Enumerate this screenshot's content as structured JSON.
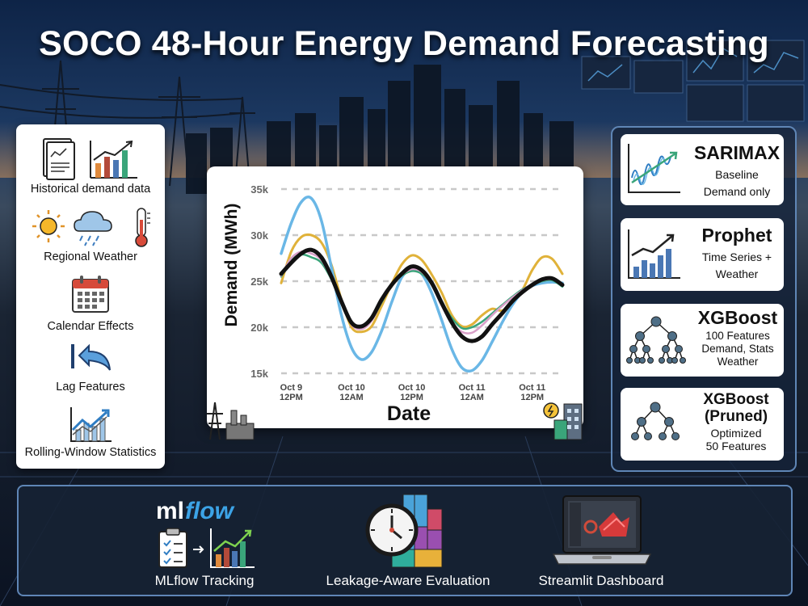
{
  "title": "SOCO 48-Hour Energy Demand Forecasting",
  "inputs": [
    {
      "label": "Historical demand data",
      "icons": [
        "document-icon",
        "bar-chart-icon"
      ]
    },
    {
      "label": "Regional Weather",
      "icons": [
        "sun-icon",
        "rain-cloud-icon",
        "thermometer-icon"
      ]
    },
    {
      "label": "Calendar Effects",
      "icons": [
        "calendar-icon"
      ]
    },
    {
      "label": "Lag Features",
      "icons": [
        "back-arrow-icon"
      ]
    },
    {
      "label": "Rolling-Window Statistics",
      "icons": [
        "trend-chart-icon"
      ]
    }
  ],
  "models": [
    {
      "name": "SARIMAX",
      "desc": [
        "Baseline",
        "Demand only"
      ],
      "icon": "wave-chart-icon"
    },
    {
      "name": "Prophet",
      "desc": [
        "Time Series +",
        "Weather"
      ],
      "icon": "bar-trend-icon"
    },
    {
      "name": "XGBoost",
      "desc": [
        "100 Features",
        "Demand, Stats",
        "Weather"
      ],
      "icon": "tree-icon"
    },
    {
      "name": "XGBoost\n(Pruned)",
      "desc": [
        "Optimized",
        "50 Features"
      ],
      "icon": "pruned-tree-icon"
    }
  ],
  "bottom": {
    "mlflow_logo": "mlflow",
    "items": [
      {
        "label": "MLflow Tracking",
        "icon": "clipboard-chart-icon"
      },
      {
        "label": "Leakage-Aware Evaluation",
        "icon": "clock-blocks-icon"
      },
      {
        "label": "Streamlit Dashboard",
        "icon": "laptop-icon"
      }
    ]
  },
  "colors": {
    "actual": "#111111",
    "sarimax": "#6ab7e6",
    "prophet": "#e0b23a",
    "xgboost": "#3aa57a",
    "xgboost_pruned": "#d9a0c9"
  },
  "chart_data": {
    "type": "line",
    "xlabel": "Date",
    "ylabel": "Demand (MWh)",
    "ylim": [
      15000,
      35000
    ],
    "yticks": [
      "15k",
      "20k",
      "25k",
      "30k",
      "35k"
    ],
    "ytick_values": [
      15000,
      20000,
      25000,
      30000,
      35000
    ],
    "xticks": [
      {
        "hour": 0,
        "label": [
          "Oct 9",
          "12PM"
        ]
      },
      {
        "hour": 12,
        "label": [
          "Oct 10",
          "12AM"
        ]
      },
      {
        "hour": 24,
        "label": [
          "Oct 10",
          "12PM"
        ]
      },
      {
        "hour": 36,
        "label": [
          "Oct 11",
          "12AM"
        ]
      },
      {
        "hour": 48,
        "label": [
          "Oct 11",
          "12PM"
        ]
      }
    ],
    "x_hours": [
      -2,
      0,
      2,
      4,
      6,
      8,
      10,
      12,
      14,
      16,
      18,
      20,
      22,
      24,
      26,
      28,
      30,
      32,
      34,
      36,
      38,
      40,
      42,
      44,
      46,
      48,
      50,
      52,
      54
    ],
    "series": [
      {
        "key": "actual",
        "width": 5,
        "values": [
          25800,
          27000,
          28000,
          28400,
          27600,
          25500,
          22800,
          20500,
          20100,
          21000,
          23000,
          24600,
          25800,
          26600,
          26200,
          24800,
          22600,
          20500,
          19000,
          18500,
          19000,
          20300,
          21500,
          22800,
          23800,
          24600,
          25200,
          25300,
          24600
        ]
      },
      {
        "key": "prophet",
        "width": 3,
        "values": [
          24800,
          28200,
          29800,
          30000,
          29200,
          26800,
          23000,
          20000,
          19500,
          20100,
          22300,
          24700,
          26800,
          27800,
          27300,
          25700,
          23700,
          21300,
          20100,
          20300,
          21300,
          22000,
          21800,
          22600,
          24000,
          26200,
          27600,
          27400,
          25800
        ]
      },
      {
        "key": "sarimax",
        "width": 3.5,
        "values": [
          28000,
          31300,
          33600,
          34000,
          31600,
          26500,
          21300,
          17800,
          16500,
          17300,
          19600,
          22700,
          25400,
          26300,
          25800,
          23700,
          20700,
          17600,
          15600,
          15300,
          16400,
          18400,
          20500,
          22400,
          23800,
          24500,
          24800,
          24900,
          24800
        ]
      },
      {
        "key": "xgboost",
        "width": 2.5,
        "values": [
          25500,
          27300,
          27900,
          27600,
          27000,
          25200,
          22800,
          20600,
          20000,
          20800,
          22700,
          24600,
          25600,
          26100,
          25800,
          24700,
          22700,
          21000,
          19900,
          20000,
          20600,
          21500,
          22400,
          23300,
          24100,
          24600,
          25000,
          25100,
          24400
        ]
      },
      {
        "key": "xgboost_pruned",
        "width": 2.5,
        "values": [
          25600,
          27500,
          28200,
          28000,
          27300,
          25300,
          22700,
          20300,
          19800,
          20700,
          22800,
          24700,
          25700,
          26300,
          26000,
          24600,
          22300,
          20500,
          19500,
          19400,
          20200,
          21300,
          22300,
          23200,
          24000,
          24700,
          25100,
          25200,
          24700
        ]
      }
    ]
  }
}
